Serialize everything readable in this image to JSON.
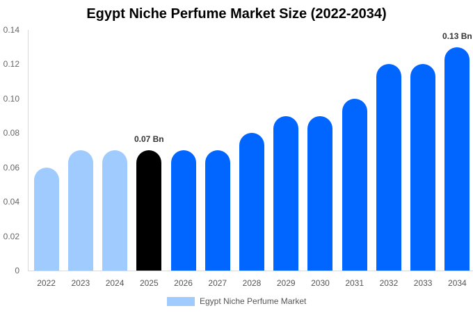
{
  "chart_data": {
    "type": "bar",
    "title": "Egypt Niche Perfume Market Size (2022-2034)",
    "xlabel": "",
    "ylabel": "",
    "ylim": [
      0,
      0.14
    ],
    "yticks": [
      "0",
      "0.02",
      "0.04",
      "0.06",
      "0.08",
      "0.10",
      "0.12",
      "0.14"
    ],
    "categories": [
      "2022",
      "2023",
      "2024",
      "2025",
      "2026",
      "2027",
      "2028",
      "2029",
      "2030",
      "2031",
      "2032",
      "2033",
      "2034"
    ],
    "series": [
      {
        "name": "Egypt Niche Perfume Market",
        "values": [
          0.06,
          0.07,
          0.07,
          0.07,
          0.07,
          0.07,
          0.08,
          0.09,
          0.09,
          0.1,
          0.12,
          0.12,
          0.13
        ]
      }
    ],
    "annotations": [
      {
        "category": "2025",
        "text": "0.07 Bn"
      },
      {
        "category": "2034",
        "text": "0.13 Bn"
      }
    ],
    "colors": {
      "historical": "#a0cbff",
      "base_year": "#000000",
      "forecast": "#0066ff"
    },
    "legend": {
      "position": "bottom",
      "label": "Egypt Niche Perfume Market",
      "color": "#a0cbff"
    },
    "grid": false
  }
}
